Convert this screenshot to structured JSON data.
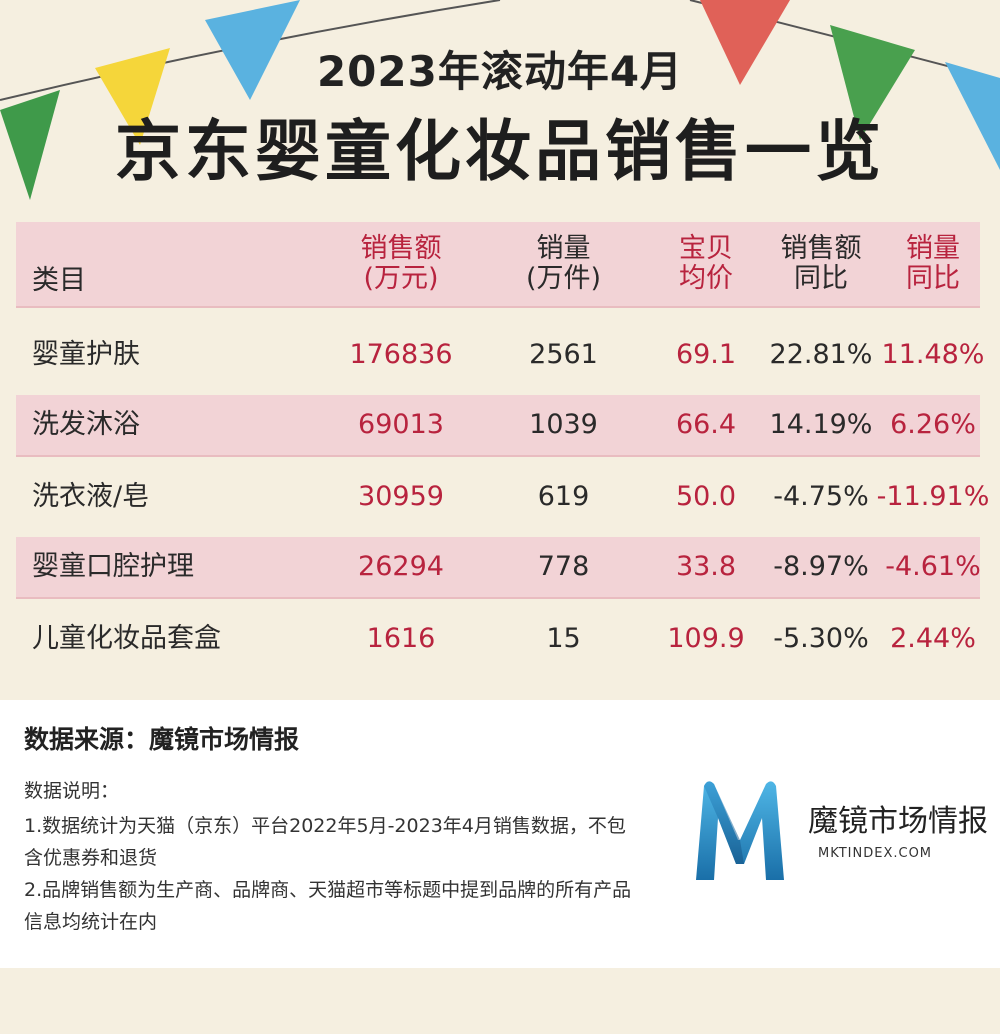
{
  "title": {
    "line1": "2023年滚动年4月",
    "line2": "京东婴童化妆品销售一览"
  },
  "table": {
    "headers": {
      "category": "类目",
      "sales": [
        "销售额",
        "(万元)"
      ],
      "volume": [
        "销量",
        "(万件)"
      ],
      "avg_price": [
        "宝贝",
        "均价"
      ],
      "sales_yoy": [
        "销售额",
        "同比"
      ],
      "volume_yoy": [
        "销量",
        "同比"
      ]
    },
    "rows": [
      {
        "category": "婴童护肤",
        "sales": "176836",
        "volume": "2561",
        "avg_price": "69.1",
        "sales_yoy": "22.81%",
        "volume_yoy": "11.48%"
      },
      {
        "category": "洗发沐浴",
        "sales": "69013",
        "volume": "1039",
        "avg_price": "66.4",
        "sales_yoy": "14.19%",
        "volume_yoy": "6.26%"
      },
      {
        "category": "洗衣液/皂",
        "sales": "30959",
        "volume": "619",
        "avg_price": "50.0",
        "sales_yoy": "-4.75%",
        "volume_yoy": "-11.91%"
      },
      {
        "category": "婴童口腔护理",
        "sales": "26294",
        "volume": "778",
        "avg_price": "33.8",
        "sales_yoy": "-8.97%",
        "volume_yoy": "-4.61%"
      },
      {
        "category": "儿童化妆品套盒",
        "sales": "1616",
        "volume": "15",
        "avg_price": "109.9",
        "sales_yoy": "-5.30%",
        "volume_yoy": "2.44%"
      }
    ]
  },
  "footer": {
    "source": "数据来源：魔镜市场情报",
    "note_title": "数据说明：",
    "note1": "1.数据统计为天猫（京东）平台2022年5月-2023年4月销售数据，不包含优惠券和退货",
    "note2": "2.品牌销售额为生产商、品牌商、天猫超市等标题中提到品牌的所有产品信息均统计在内",
    "brand_name": "魔镜市场情报",
    "brand_url": "MKTINDEX.COM"
  },
  "colors": {
    "accent_red": "#b8233e",
    "row_shade": "#f2d3d6",
    "background": "#f5efe0"
  }
}
